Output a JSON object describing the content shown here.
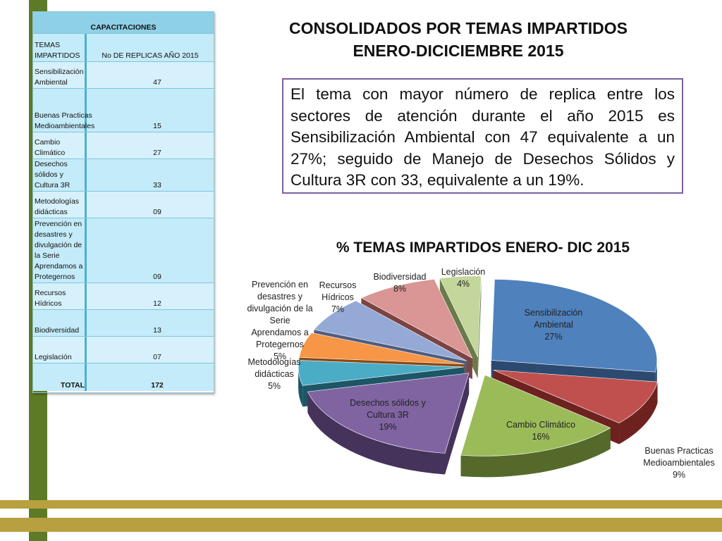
{
  "table": {
    "header": "CAPACITACIONES",
    "col1_header": "TEMAS IMPARTIDOS",
    "col2_header": "No DE REPLICAS AÑO 2015",
    "rows": [
      {
        "tema": "Sensibilización Ambiental",
        "valor": "47"
      },
      {
        "tema": "Buenas Practicas Medioambientales",
        "valor": "15"
      },
      {
        "tema": "Cambio Climático",
        "valor": "27"
      },
      {
        "tema": "Desechos sólidos y Cultura 3R",
        "valor": "33"
      },
      {
        "tema": "Metodologías didácticas",
        "valor": "09"
      },
      {
        "tema": "Prevención en desastres y divulgación de la Serie Aprendamos a Protegernos",
        "valor": "09"
      },
      {
        "tema": "Recursos Hídricos",
        "valor": "12"
      },
      {
        "tema": "Biodiversidad",
        "valor": "13"
      },
      {
        "tema": "Legislación",
        "valor": "07"
      }
    ],
    "total_label": "TOTAL",
    "total_value": "172"
  },
  "page": {
    "title_line1": "CONSOLIDADOS POR TEMAS IMPARTIDOS",
    "title_line2": "ENERO-DICICIEMBRE 2015",
    "summary": "El tema con mayor número de replica entre los sectores de atención durante el año 2015 es Sensibilización Ambiental con 47 equivalente a un 27%; seguido de Manejo de Desechos Sólidos y Cultura 3R con 33, equivalente a un 19%."
  },
  "chart_data": {
    "type": "pie",
    "title": "% TEMAS IMPARTIDOS ENERO- DIC 2015",
    "slices": [
      {
        "label": "Sensibilización Ambiental",
        "percent": "27%",
        "value": 27,
        "color": "#4f81bd",
        "dark": "#2c4a70"
      },
      {
        "label": "Buenas Practicas Medioambientales",
        "percent": "9%",
        "value": 9,
        "color": "#c0504d",
        "dark": "#6e2220"
      },
      {
        "label": "Cambio Climático",
        "percent": "16%",
        "value": 16,
        "color": "#9bbb59",
        "dark": "#556a2a"
      },
      {
        "label": "Desechos sólidos y Cultura 3R",
        "percent": "19%",
        "value": 19,
        "color": "#8064a2",
        "dark": "#45335c"
      },
      {
        "label": "Metodologías didácticas",
        "percent": "5%",
        "value": 5,
        "color": "#4bacc6",
        "dark": "#1d5666"
      },
      {
        "label": "Prevención en desastres y divulgación de la Serie Aprendamos a Protegernos",
        "percent": "5%",
        "value": 5,
        "color": "#f79646",
        "dark": "#8a4a14"
      },
      {
        "label": "Recursos Hídricos",
        "percent": "7%",
        "value": 7,
        "color": "#95a9d6",
        "dark": "#4f5d80"
      },
      {
        "label": "Biodiversidad",
        "percent": "8%",
        "value": 8,
        "color": "#d99694",
        "dark": "#7a4442"
      },
      {
        "label": "Legislación",
        "percent": "4%",
        "value": 4,
        "color": "#c3d69b",
        "dark": "#6a7a48"
      }
    ]
  }
}
